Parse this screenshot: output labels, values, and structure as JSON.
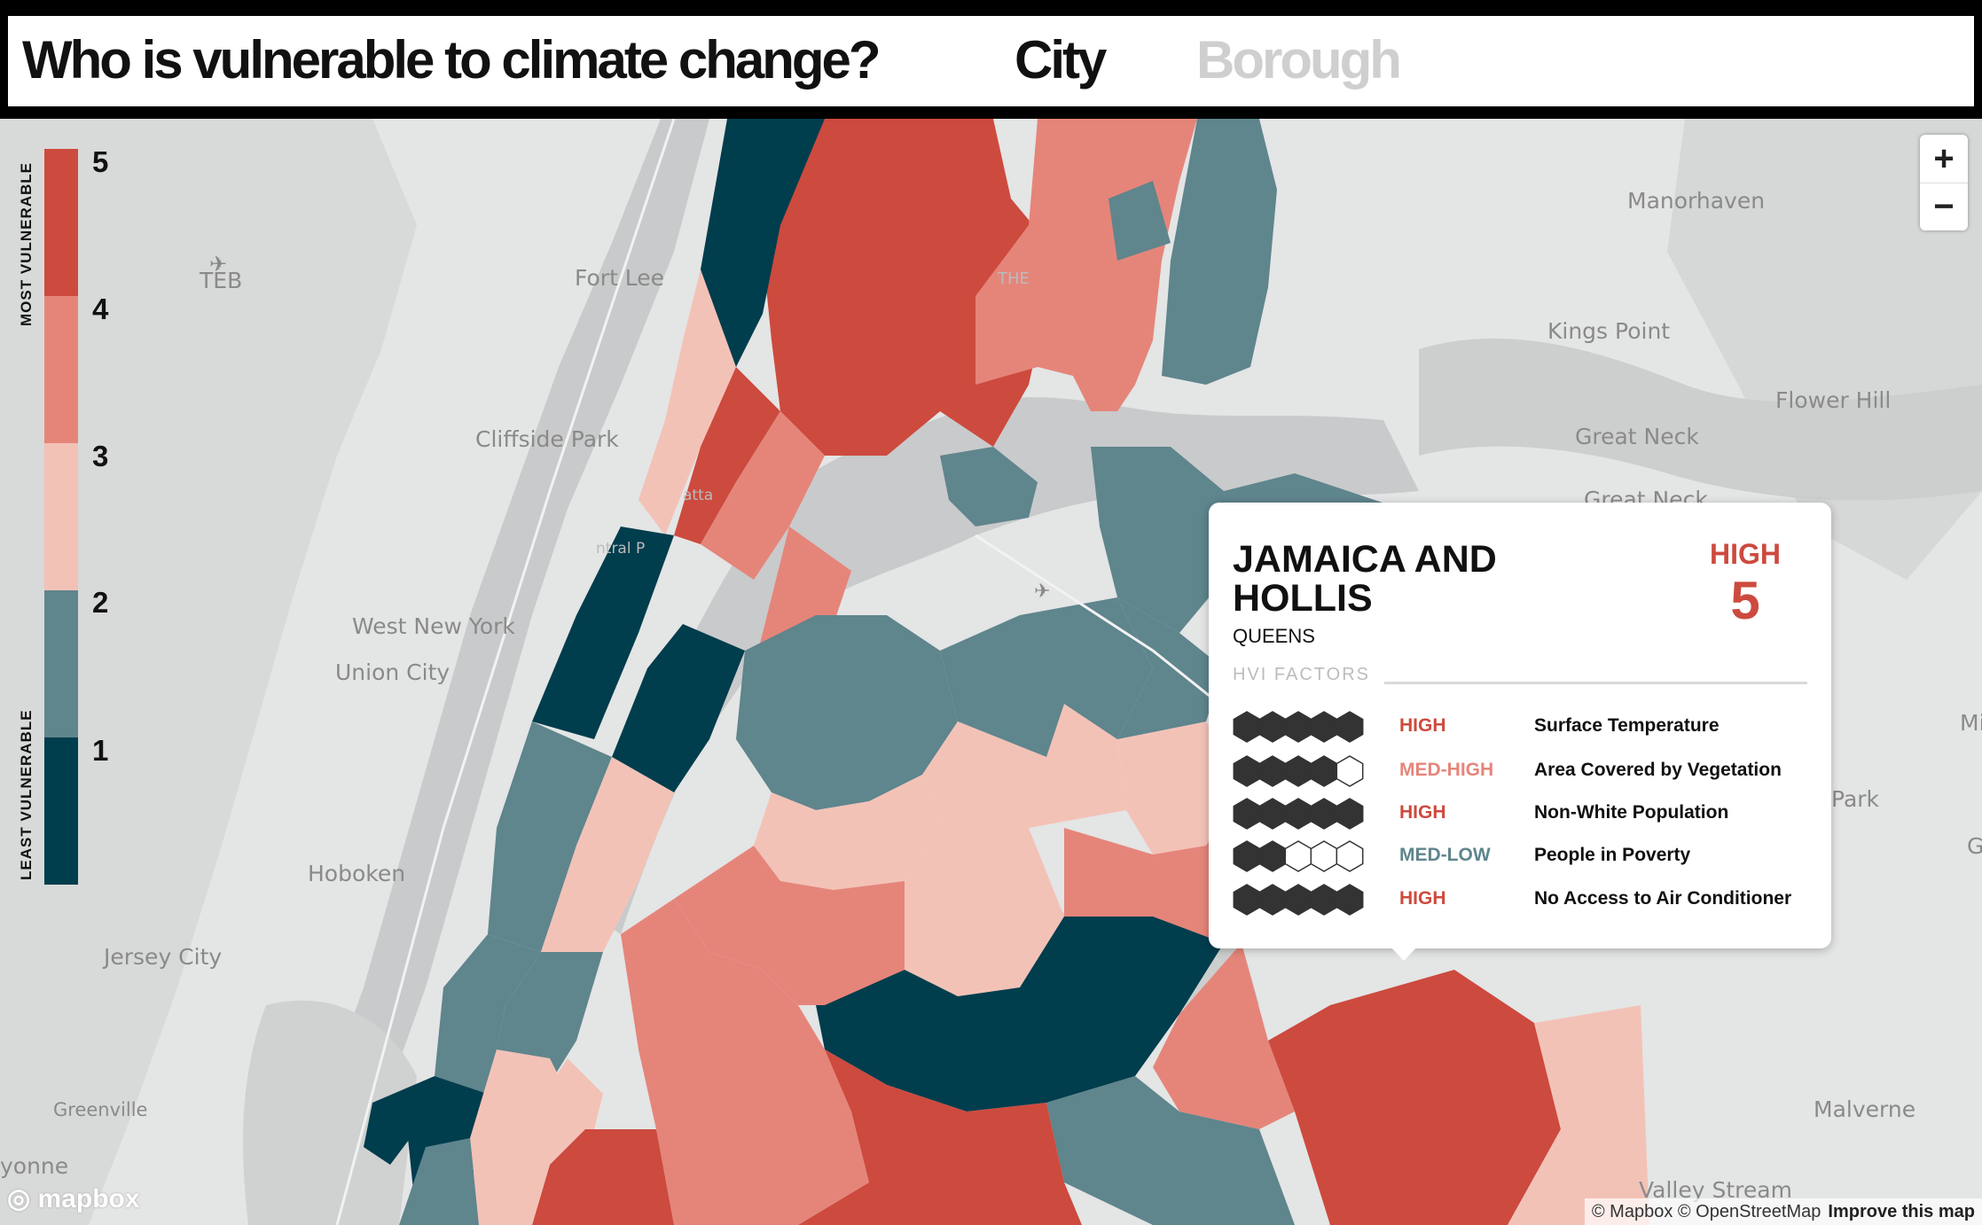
{
  "header": {
    "title": "Who is vulnerable to climate change?",
    "tabs": [
      {
        "label": "City",
        "active": true
      },
      {
        "label": "Borough",
        "active": false
      }
    ]
  },
  "legend": {
    "most_label": "MOST VULNERABLE",
    "least_label": "LEAST VULNERABLE",
    "levels": [
      {
        "value": "5",
        "color": "#cd4a3e"
      },
      {
        "value": "4",
        "color": "#e5857a"
      },
      {
        "value": "3",
        "color": "#f3c2b7"
      },
      {
        "value": "2",
        "color": "#5f858d"
      },
      {
        "value": "1",
        "color": "#003d4d"
      }
    ]
  },
  "map": {
    "places": [
      "TEB",
      "Fort Lee",
      "THE",
      "Cliffside Park",
      "West New York",
      "Union City",
      "Hoboken",
      "Jersey City",
      "Greenville",
      "yonne",
      "Manorhaven",
      "Kings Point",
      "Flower Hill",
      "Great Neck",
      "Great Neck",
      "Park",
      "Mi",
      "G",
      "Malverne",
      "Valley Stream",
      "atta",
      "ntral P"
    ],
    "zoom_in": "+",
    "zoom_out": "−"
  },
  "popup": {
    "name": "JAMAICA AND HOLLIS",
    "borough": "QUEENS",
    "level": "HIGH",
    "score": "5",
    "factors_label": "HVI FACTORS",
    "factors": [
      {
        "level": "HIGH",
        "name": "Surface Temperature",
        "filled": 5,
        "color": "#cd4a3e"
      },
      {
        "level": "MED-HIGH",
        "name": "Area Covered by Vegetation",
        "filled": 4,
        "color": "#e5857a"
      },
      {
        "level": "HIGH",
        "name": "Non-White Population",
        "filled": 5,
        "color": "#cd4a3e"
      },
      {
        "level": "MED-LOW",
        "name": "People in Poverty",
        "filled": 2,
        "color": "#5f858d"
      },
      {
        "level": "HIGH",
        "name": "No Access to Air Conditioner",
        "filled": 5,
        "color": "#cd4a3e"
      }
    ]
  },
  "attribution": {
    "logo": "mapbox",
    "text": "© Mapbox © OpenStreetMap",
    "improve": "Improve this map"
  }
}
